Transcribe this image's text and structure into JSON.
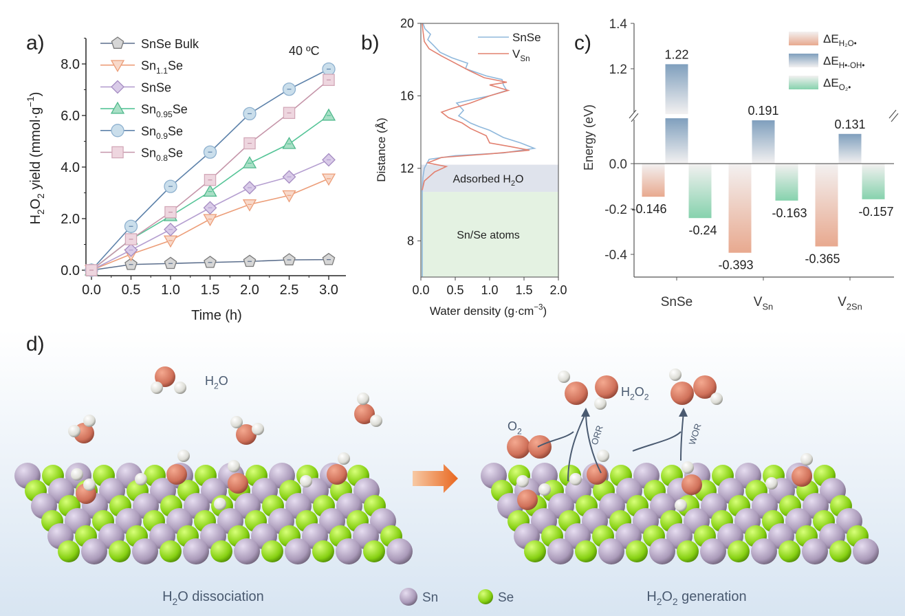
{
  "panel_labels": {
    "a": "a)",
    "b": "b)",
    "c": "c)",
    "d": "d)"
  },
  "chart_data": [
    {
      "panel": "a",
      "type": "line",
      "annotation": "40 ºC",
      "xlabel": "Time (h)",
      "ylabel": [
        {
          "t": "H"
        },
        {
          "t": "2",
          "pos": "sub"
        },
        {
          "t": "O"
        },
        {
          "t": "2",
          "pos": "sub"
        },
        {
          "t": " yield (mmol·g"
        },
        {
          "t": "−1",
          "pos": "sup"
        },
        {
          "t": ")"
        }
      ],
      "xlim": [
        -0.07,
        3.2
      ],
      "ylim": [
        -0.2,
        9.0
      ],
      "xticks": [
        "0.0",
        "0.5",
        "1.0",
        "1.5",
        "2.0",
        "2.5",
        "3.0"
      ],
      "yticks": [
        "0.0",
        "2.0",
        "4.0",
        "6.0",
        "8.0"
      ],
      "legend_position": "top-left",
      "grid": false,
      "x": [
        0,
        0.5,
        1.0,
        1.5,
        2.0,
        2.5,
        3.0
      ],
      "series": [
        {
          "name": [
            {
              "t": "SnSe Bulk"
            }
          ],
          "marker": "pentagon",
          "color": "#5b6e8c",
          "fill": "#d6d6d6",
          "stroke": "#7a7a7a",
          "values": [
            0,
            0.22,
            0.26,
            0.3,
            0.34,
            0.4,
            0.41
          ]
        },
        {
          "name": [
            {
              "t": "Sn"
            },
            {
              "t": "1.1",
              "pos": "sub"
            },
            {
              "t": "Se"
            }
          ],
          "marker": "triangle-down",
          "color": "#ec9d78",
          "fill": "#f8d9ca",
          "stroke": "#ec9d78",
          "values": [
            0,
            0.62,
            1.15,
            1.98,
            2.55,
            2.9,
            3.55
          ]
        },
        {
          "name": [
            {
              "t": "SnSe"
            }
          ],
          "marker": "diamond",
          "color": "#b59fd0",
          "fill": "#d9cbe8",
          "stroke": "#a58cc2",
          "values": [
            0,
            0.78,
            1.58,
            2.42,
            3.2,
            3.62,
            4.28
          ]
        },
        {
          "name": [
            {
              "t": "Sn"
            },
            {
              "t": "0.95",
              "pos": "sub"
            },
            {
              "t": "Se"
            }
          ],
          "marker": "triangle-up",
          "color": "#55c497",
          "fill": "#a9dfc6",
          "stroke": "#4fb98c",
          "values": [
            0,
            1.2,
            2.1,
            3.05,
            4.15,
            4.9,
            6.0
          ]
        },
        {
          "name": [
            {
              "t": "Sn"
            },
            {
              "t": "0.9",
              "pos": "sub"
            },
            {
              "t": "Se"
            }
          ],
          "marker": "circle",
          "color": "#5d82aa",
          "fill": "#cadeeb",
          "stroke": "#8eb1cf",
          "values": [
            0,
            1.7,
            3.25,
            4.58,
            6.07,
            7.02,
            7.8
          ]
        },
        {
          "name": [
            {
              "t": "Sn"
            },
            {
              "t": "0.8",
              "pos": "sub"
            },
            {
              "t": "Se"
            }
          ],
          "marker": "square",
          "color": "#c595a9",
          "fill": "#eed6df",
          "stroke": "#d3a8b8",
          "values": [
            0,
            1.2,
            2.25,
            3.5,
            4.92,
            6.1,
            7.38
          ]
        }
      ]
    },
    {
      "panel": "b",
      "type": "line",
      "xlabel": [
        {
          "t": "Water density (g·cm"
        },
        {
          "t": "−3",
          "pos": "sup"
        },
        {
          "t": ")"
        }
      ],
      "ylabel": "Distance (Å)",
      "xlim": [
        0,
        2.0
      ],
      "ylim": [
        6,
        20
      ],
      "xticks": [
        "0.0",
        "0.5",
        "1.0",
        "1.5",
        "2.0"
      ],
      "yticks": [
        "8",
        "12",
        "16",
        "20"
      ],
      "legend_position": "top-right",
      "regions": [
        {
          "label": [
            {
              "t": "Adsorbed H"
            },
            {
              "t": "2",
              "pos": "sub"
            },
            {
              "t": "O"
            }
          ],
          "range": [
            10.7,
            12.2
          ],
          "color": "#dfe3ec"
        },
        {
          "label": [
            {
              "t": "Sn/Se atoms"
            }
          ],
          "range": [
            6,
            10.7
          ],
          "color": "#e4f2e2"
        }
      ],
      "series": [
        {
          "name": [
            {
              "t": "SnSe"
            }
          ],
          "color": "#8fb8dc",
          "points": [
            [
              0.02,
              6
            ],
            [
              0.02,
              10.8
            ],
            [
              0.03,
              11.5
            ],
            [
              0.05,
              12.0
            ],
            [
              0.12,
              12.5
            ],
            [
              0.5,
              12.7
            ],
            [
              1.2,
              12.85
            ],
            [
              1.65,
              13.1
            ],
            [
              1.45,
              13.4
            ],
            [
              1.2,
              13.7
            ],
            [
              1.0,
              14.1
            ],
            [
              0.85,
              14.3
            ],
            [
              0.72,
              14.5
            ],
            [
              0.55,
              14.9
            ],
            [
              0.62,
              15.2
            ],
            [
              0.52,
              15.6
            ],
            [
              0.75,
              15.8
            ],
            [
              1.0,
              16.0
            ],
            [
              1.25,
              16.3
            ],
            [
              1.2,
              16.6
            ],
            [
              1.18,
              16.9
            ],
            [
              0.95,
              17.1
            ],
            [
              0.65,
              17.5
            ],
            [
              0.68,
              17.8
            ],
            [
              0.45,
              18.1
            ],
            [
              0.28,
              18.4
            ],
            [
              0.18,
              18.8
            ],
            [
              0.1,
              19.1
            ],
            [
              0.14,
              19.4
            ],
            [
              0.06,
              19.7
            ],
            [
              0.03,
              20
            ]
          ]
        },
        {
          "name": [
            {
              "t": "V"
            },
            {
              "t": "Sn",
              "pos": "sub"
            }
          ],
          "color": "#e2806f",
          "points": [
            [
              0.02,
              10.8
            ],
            [
              0.05,
              11.3
            ],
            [
              0.2,
              11.8
            ],
            [
              0.37,
              12.1
            ],
            [
              0.1,
              12.3
            ],
            [
              0.3,
              12.6
            ],
            [
              1.0,
              12.8
            ],
            [
              1.58,
              13.0
            ],
            [
              1.3,
              13.2
            ],
            [
              1.0,
              13.4
            ],
            [
              0.95,
              13.8
            ],
            [
              0.72,
              14.2
            ],
            [
              0.6,
              14.5
            ],
            [
              0.4,
              14.8
            ],
            [
              0.3,
              15.1
            ],
            [
              0.45,
              15.3
            ],
            [
              0.72,
              15.6
            ],
            [
              1.0,
              16.0
            ],
            [
              1.27,
              16.3
            ],
            [
              1.0,
              16.6
            ],
            [
              1.25,
              16.75
            ],
            [
              0.92,
              17.0
            ],
            [
              0.7,
              17.4
            ],
            [
              0.45,
              17.9
            ],
            [
              0.3,
              18.2
            ],
            [
              0.12,
              18.6
            ],
            [
              0.05,
              19.0
            ],
            [
              0.03,
              19.6
            ],
            [
              0.02,
              20
            ]
          ]
        }
      ]
    },
    {
      "panel": "c",
      "type": "bar",
      "ylabel": "Energy (eV)",
      "axis_break": true,
      "ylim_lower": [
        -0.5,
        0.2
      ],
      "ylim_upper": [
        1.0,
        1.4
      ],
      "yticks": [
        "1.4",
        "1.2",
        "0.0",
        "-0.2",
        "-0.4"
      ],
      "legend_position": "top-right",
      "categories": [
        [
          {
            "t": "SnSe"
          }
        ],
        [
          {
            "t": "V"
          },
          {
            "t": "Sn",
            "pos": "sub"
          }
        ],
        [
          {
            "t": "V"
          },
          {
            "t": "2Sn",
            "pos": "sub"
          }
        ]
      ],
      "series": [
        {
          "name": [
            {
              "t": "ΔE"
            },
            {
              "t": "H₂O•",
              "pos": "sub"
            }
          ],
          "color": "#e8a98f",
          "values": [
            -0.146,
            -0.393,
            -0.365
          ]
        },
        {
          "name": [
            {
              "t": "ΔE"
            },
            {
              "t": "H•-OH•",
              "pos": "sub"
            }
          ],
          "color": "#7f9fbd",
          "values": [
            1.22,
            0.191,
            0.131
          ]
        },
        {
          "name": [
            {
              "t": "ΔE"
            },
            {
              "t": "O₂•",
              "pos": "sub"
            }
          ],
          "color": "#86d2ad",
          "values": [
            -0.24,
            -0.163,
            -0.157
          ]
        }
      ]
    }
  ],
  "diagram": {
    "h2o_label": [
      {
        "t": "H"
      },
      {
        "t": "2",
        "pos": "sub"
      },
      {
        "t": "O"
      }
    ],
    "o2_label": [
      {
        "t": "O"
      },
      {
        "t": "2",
        "pos": "sub"
      }
    ],
    "h2o2_label": [
      {
        "t": "H"
      },
      {
        "t": "2",
        "pos": "sub"
      },
      {
        "t": "O"
      },
      {
        "t": "2",
        "pos": "sub"
      }
    ],
    "orr_label": "ORR",
    "wor_label": "WOR",
    "left_caption": [
      {
        "t": "H"
      },
      {
        "t": "2",
        "pos": "sub"
      },
      {
        "t": "O dissociation"
      }
    ],
    "right_caption": [
      {
        "t": "H"
      },
      {
        "t": "2",
        "pos": "sub"
      },
      {
        "t": "O"
      },
      {
        "t": "2",
        "pos": "sub"
      },
      {
        "t": " generation"
      }
    ],
    "legend": [
      {
        "label": "Sn",
        "color": "#b7a7c6"
      },
      {
        "label": "Se",
        "color": "#9be02a"
      }
    ],
    "colors": {
      "oxygen": "#d9725a",
      "hydrogen": "#e8e8e2",
      "arrow": "#ec7a35",
      "path_arrow": "#4a5a70"
    }
  }
}
